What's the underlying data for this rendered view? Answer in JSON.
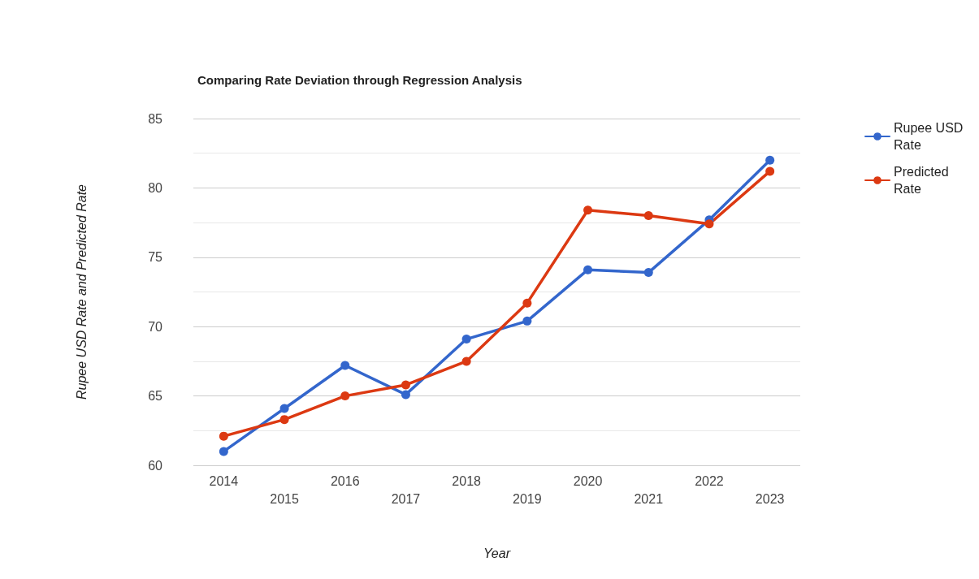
{
  "chart_data": {
    "type": "line",
    "title": "Comparing Rate Deviation through Regression Analysis",
    "xlabel": "Year",
    "ylabel": "Rupee USD Rate and Predicted Rate",
    "categories": [
      "2014",
      "2015",
      "2016",
      "2017",
      "2018",
      "2019",
      "2020",
      "2021",
      "2022",
      "2023"
    ],
    "series": [
      {
        "name": "Rupee USD Rate",
        "color": "#3366cc",
        "values": [
          61.0,
          64.1,
          67.2,
          65.1,
          69.1,
          70.4,
          74.1,
          73.9,
          77.7,
          82.0
        ]
      },
      {
        "name": "Predicted Rate",
        "color": "#dc3912",
        "values": [
          62.1,
          63.3,
          65.0,
          65.8,
          67.5,
          71.7,
          78.4,
          78.0,
          77.4,
          81.2
        ]
      }
    ],
    "ylim": [
      60,
      85
    ],
    "yticks": [
      60,
      65,
      70,
      75,
      80,
      85
    ],
    "grid": "y",
    "legend": "top right",
    "marker": "circle",
    "line_style": "solid"
  }
}
